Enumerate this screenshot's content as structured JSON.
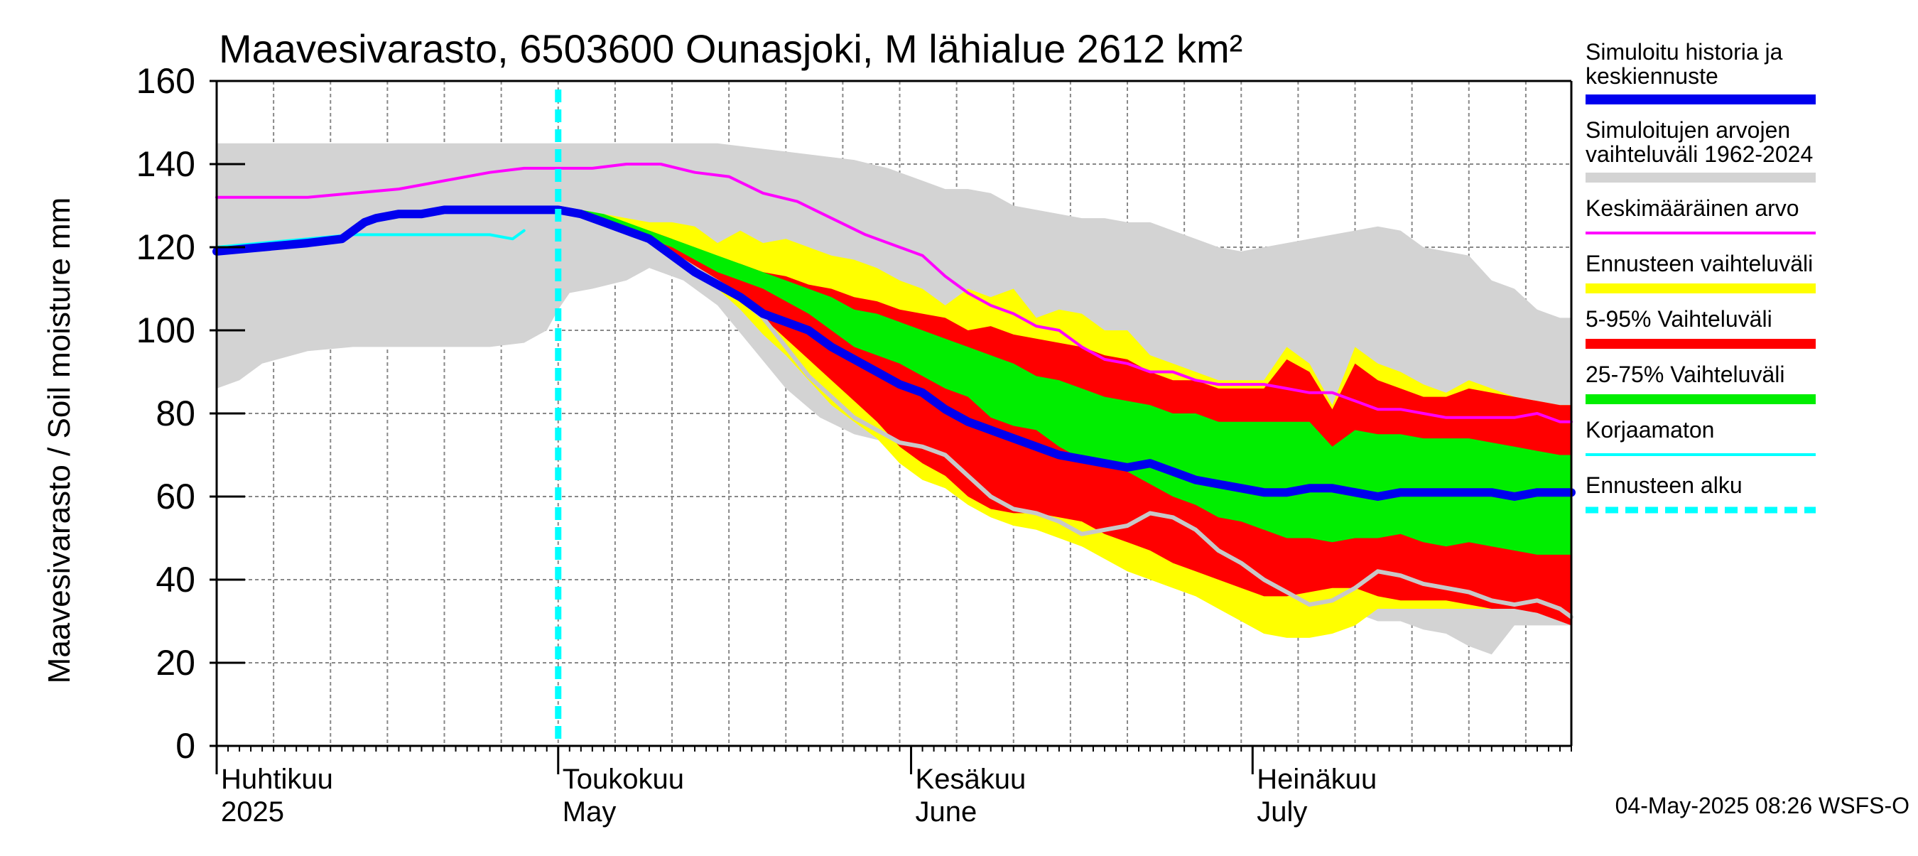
{
  "chart_data": {
    "type": "area",
    "title": "Maavesivarasto, 6503600 Ounasjoki, M lähialue 2612 km²",
    "ylabel": "Maavesivarasto / Soil moisture   mm",
    "xlabel": "",
    "ylim": [
      0,
      160
    ],
    "yticks": [
      "0",
      "20",
      "40",
      "60",
      "80",
      "100",
      "120",
      "140",
      "160"
    ],
    "ytick_values": [
      0,
      20,
      40,
      60,
      80,
      100,
      120,
      140,
      160
    ],
    "x_range_days": [
      0,
      119
    ],
    "month_labels": [
      {
        "day": 0,
        "fi": "Huhtikuu",
        "en": "2025"
      },
      {
        "day": 30,
        "fi": "Toukokuu",
        "en": "May"
      },
      {
        "day": 61,
        "fi": "Kesäkuu",
        "en": "June"
      },
      {
        "day": 91,
        "fi": "Heinäkuu",
        "en": "July"
      }
    ],
    "forecast_start_day": 30,
    "series": [
      {
        "name": "Simuloitujen arvojen vaihteluväli 1962-2024",
        "kind": "band",
        "color": "#d3d3d3",
        "x": [
          0,
          2,
          4,
          8,
          12,
          16,
          20,
          24,
          27,
          29,
          30,
          31,
          33,
          36,
          38,
          41,
          44,
          47,
          50,
          53,
          56,
          59,
          62,
          64,
          66,
          68,
          70,
          72,
          74,
          76,
          78,
          80,
          82,
          84,
          86,
          88,
          90,
          92,
          94,
          96,
          98,
          100,
          102,
          104,
          106,
          108,
          110,
          112,
          114,
          116,
          117,
          118,
          119
        ],
        "upper": [
          145,
          145,
          145,
          145,
          145,
          145,
          145,
          145,
          145,
          145,
          145,
          145,
          145,
          145,
          145,
          145,
          145,
          144,
          143,
          142,
          141,
          139,
          136,
          134,
          134,
          133,
          130,
          129,
          128,
          127,
          127,
          126,
          126,
          124,
          122,
          120,
          119,
          120,
          121,
          122,
          123,
          124,
          125,
          124,
          120,
          119,
          118,
          112,
          110,
          105,
          104,
          103,
          103
        ],
        "lower": [
          86,
          88,
          92,
          95,
          96,
          96,
          96,
          96,
          97,
          100,
          105,
          109,
          110,
          112,
          115,
          112,
          106,
          96,
          86,
          79,
          75,
          73,
          71,
          69,
          64,
          60,
          55,
          53,
          55,
          52,
          52,
          51,
          46,
          40,
          38,
          38,
          37,
          37,
          37,
          36,
          35,
          32,
          30,
          30,
          28,
          27,
          24,
          22,
          29,
          29,
          29,
          29,
          29
        ]
      },
      {
        "name": "Ennusteen vaihteluväli",
        "kind": "band",
        "color": "#ffff00",
        "x": [
          30,
          32,
          34,
          36,
          38,
          40,
          42,
          44,
          46,
          48,
          50,
          52,
          54,
          56,
          58,
          60,
          62,
          64,
          66,
          68,
          70,
          72,
          74,
          76,
          78,
          80,
          82,
          84,
          86,
          88,
          90,
          92,
          94,
          96,
          98,
          100,
          102,
          104,
          106,
          108,
          110,
          112,
          114,
          116,
          118,
          119
        ],
        "upper": [
          130,
          129,
          128,
          127,
          126,
          126,
          125,
          121,
          124,
          121,
          122,
          120,
          118,
          117,
          115,
          112,
          110,
          106,
          110,
          108,
          110,
          103,
          105,
          104,
          100,
          100,
          94,
          92,
          90,
          88,
          88,
          88,
          96,
          92,
          82,
          96,
          92,
          90,
          87,
          85,
          88,
          86,
          84,
          83,
          82,
          82
        ],
        "lower": [
          129,
          127,
          125,
          123,
          121,
          117,
          114,
          110,
          105,
          99,
          94,
          88,
          82,
          78,
          74,
          68,
          64,
          62,
          58,
          55,
          53,
          52,
          50,
          48,
          45,
          42,
          40,
          38,
          36,
          33,
          30,
          27,
          26,
          26,
          27,
          29,
          33,
          33,
          33,
          33,
          33,
          33,
          33,
          33,
          31,
          30
        ]
      },
      {
        "name": "5-95% Vaihteluväli",
        "kind": "band",
        "color": "#ff0000",
        "x": [
          30,
          32,
          34,
          36,
          38,
          40,
          42,
          44,
          46,
          48,
          50,
          52,
          54,
          56,
          58,
          60,
          62,
          64,
          66,
          68,
          70,
          72,
          74,
          76,
          78,
          80,
          82,
          84,
          86,
          88,
          90,
          92,
          94,
          96,
          98,
          100,
          102,
          104,
          106,
          108,
          110,
          112,
          114,
          116,
          118,
          119
        ],
        "upper": [
          130,
          129,
          127,
          125,
          124,
          122,
          119,
          117,
          116,
          114,
          113,
          111,
          110,
          108,
          107,
          105,
          104,
          103,
          100,
          101,
          99,
          98,
          97,
          96,
          94,
          93,
          90,
          88,
          88,
          86,
          86,
          86,
          93,
          90,
          81,
          92,
          88,
          86,
          84,
          84,
          86,
          85,
          84,
          83,
          82,
          82
        ],
        "lower": [
          129,
          127,
          125,
          123,
          121,
          118,
          115,
          112,
          108,
          103,
          98,
          93,
          88,
          83,
          78,
          72,
          68,
          65,
          60,
          57,
          56,
          56,
          55,
          54,
          51,
          49,
          47,
          44,
          42,
          40,
          38,
          36,
          36,
          37,
          38,
          38,
          36,
          35,
          35,
          35,
          34,
          33,
          33,
          32,
          30,
          29
        ]
      },
      {
        "name": "25-75% Vaihteluväli",
        "kind": "band",
        "color": "#00ee00",
        "x": [
          30,
          32,
          34,
          36,
          38,
          40,
          42,
          44,
          46,
          48,
          50,
          52,
          54,
          56,
          58,
          60,
          62,
          64,
          66,
          68,
          70,
          72,
          74,
          76,
          78,
          80,
          82,
          84,
          86,
          88,
          90,
          92,
          94,
          96,
          98,
          100,
          102,
          104,
          106,
          108,
          110,
          112,
          114,
          116,
          118,
          119
        ],
        "upper": [
          130,
          129,
          128,
          126,
          124,
          122,
          120,
          118,
          116,
          114,
          112,
          110,
          108,
          105,
          104,
          102,
          100,
          98,
          96,
          94,
          92,
          89,
          88,
          86,
          84,
          83,
          82,
          80,
          80,
          78,
          78,
          78,
          78,
          78,
          72,
          76,
          75,
          75,
          74,
          74,
          74,
          73,
          72,
          71,
          70,
          70
        ],
        "lower": [
          129,
          128,
          126,
          124,
          122,
          120,
          117,
          114,
          112,
          110,
          107,
          104,
          100,
          96,
          94,
          92,
          89,
          86,
          84,
          79,
          77,
          76,
          72,
          69,
          67,
          66,
          63,
          60,
          58,
          55,
          54,
          52,
          50,
          50,
          49,
          50,
          50,
          51,
          49,
          48,
          49,
          48,
          47,
          46,
          46,
          46
        ]
      },
      {
        "name": "Keskimääräinen arvo",
        "kind": "line",
        "color": "#ff00ff",
        "width": 4,
        "x": [
          0,
          4,
          8,
          12,
          16,
          20,
          24,
          27,
          30,
          33,
          36,
          39,
          42,
          45,
          48,
          51,
          54,
          57,
          60,
          62,
          64,
          66,
          68,
          70,
          72,
          74,
          76,
          78,
          80,
          82,
          84,
          86,
          88,
          90,
          92,
          94,
          96,
          98,
          100,
          102,
          104,
          106,
          108,
          110,
          112,
          114,
          116,
          118,
          119
        ],
        "y": [
          132,
          132,
          132,
          133,
          134,
          136,
          138,
          139,
          139,
          139,
          140,
          140,
          138,
          137,
          133,
          131,
          127,
          123,
          120,
          118,
          113,
          109,
          106,
          104,
          101,
          100,
          96,
          93,
          92,
          90,
          90,
          88,
          87,
          87,
          87,
          86,
          85,
          85,
          83,
          81,
          81,
          80,
          79,
          79,
          79,
          79,
          80,
          78,
          78
        ]
      },
      {
        "name": "Korjaamaton",
        "kind": "line",
        "color": "#00ffff",
        "width": 4,
        "x": [
          0,
          4,
          8,
          12,
          16,
          20,
          24,
          26,
          27
        ],
        "y": [
          120,
          121,
          122,
          123,
          123,
          123,
          123,
          122,
          124
        ]
      },
      {
        "name": "Ensemble member",
        "kind": "line",
        "color": "#c8c8c8",
        "width": 6,
        "x": [
          30,
          33,
          36,
          39,
          42,
          45,
          48,
          50,
          52,
          54,
          56,
          58,
          60,
          62,
          64,
          66,
          68,
          70,
          72,
          74,
          76,
          78,
          80,
          82,
          84,
          86,
          88,
          90,
          92,
          94,
          96,
          98,
          100,
          102,
          104,
          106,
          108,
          110,
          112,
          114,
          116,
          118,
          119
        ],
        "y": [
          129,
          127,
          124,
          120,
          115,
          110,
          103,
          96,
          89,
          84,
          79,
          76,
          73,
          72,
          70,
          65,
          60,
          57,
          56,
          54,
          51,
          52,
          53,
          56,
          55,
          52,
          47,
          44,
          40,
          37,
          34,
          35,
          38,
          42,
          41,
          39,
          38,
          37,
          35,
          34,
          35,
          33,
          31
        ]
      },
      {
        "name": "Simuloitu historia ja keskiennuste",
        "kind": "line",
        "color": "#0000ee",
        "width": 12,
        "x": [
          0,
          4,
          8,
          11,
          12,
          13,
          14,
          16,
          18,
          20,
          22,
          24,
          26,
          28,
          30,
          32,
          34,
          36,
          38,
          40,
          42,
          44,
          46,
          48,
          50,
          52,
          54,
          56,
          58,
          60,
          62,
          64,
          66,
          68,
          70,
          72,
          74,
          76,
          78,
          80,
          82,
          84,
          86,
          88,
          90,
          92,
          94,
          96,
          98,
          100,
          102,
          104,
          106,
          108,
          110,
          112,
          114,
          116,
          118,
          119
        ],
        "y": [
          119,
          120,
          121,
          122,
          124,
          126,
          127,
          128,
          128,
          129,
          129,
          129,
          129,
          129,
          129,
          128,
          126,
          124,
          122,
          118,
          114,
          111,
          108,
          104,
          102,
          100,
          96,
          93,
          90,
          87,
          85,
          81,
          78,
          76,
          74,
          72,
          70,
          69,
          68,
          67,
          68,
          66,
          64,
          63,
          62,
          61,
          61,
          62,
          62,
          61,
          60,
          61,
          61,
          61,
          61,
          61,
          60,
          61,
          61,
          61
        ]
      }
    ],
    "legend": [
      {
        "label1": "Simuloitu historia ja",
        "label2": "keskiennuste",
        "color": "#0000ee",
        "style": "thick"
      },
      {
        "label1": "Simuloitujen arvojen",
        "label2": "vaihteluväli 1962-2024",
        "color": "#d3d3d3",
        "style": "thick"
      },
      {
        "label1": "Keskimääräinen arvo",
        "label2": "",
        "color": "#ff00ff",
        "style": "thin"
      },
      {
        "label1": "Ennusteen vaihteluväli",
        "label2": "",
        "color": "#ffff00",
        "style": "thick"
      },
      {
        "label1": "5-95% Vaihteluväli",
        "label2": "",
        "color": "#ff0000",
        "style": "thick"
      },
      {
        "label1": "25-75% Vaihteluväli",
        "label2": "",
        "color": "#00ee00",
        "style": "thick"
      },
      {
        "label1": "Korjaamaton",
        "label2": "",
        "color": "#00ffff",
        "style": "thin"
      },
      {
        "label1": "Ennusteen alku",
        "label2": "",
        "color": "#00ffff",
        "style": "dashed"
      }
    ],
    "footer": "04-May-2025 08:26 WSFS-O"
  }
}
